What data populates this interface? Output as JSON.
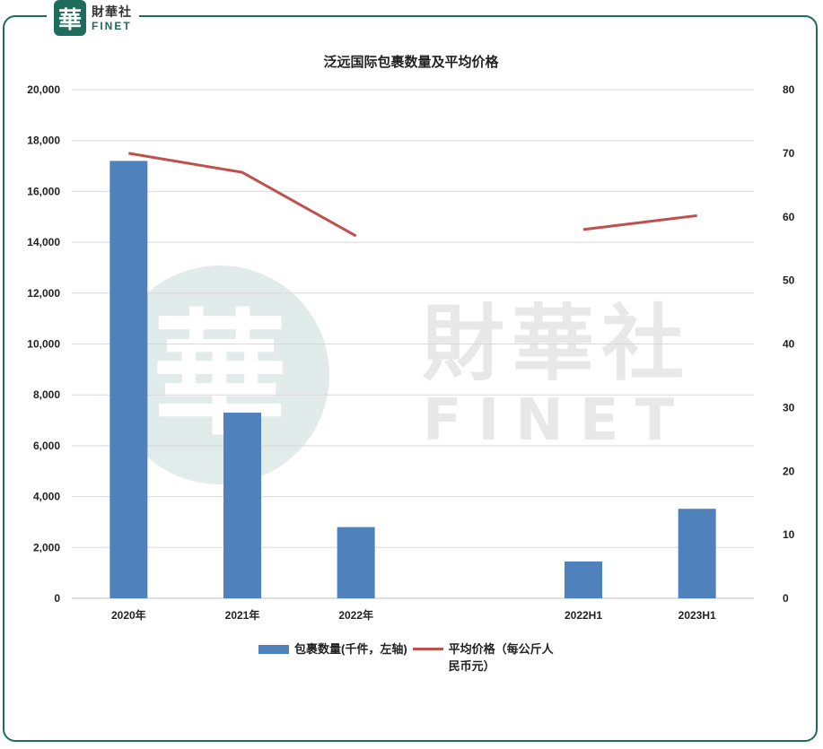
{
  "brand": {
    "logo_char": "華",
    "name_cn": "財華社",
    "name_en": "FINET",
    "watermark_cn": "財華社",
    "watermark_en": "FINET"
  },
  "colors": {
    "bar": "#4f81bd",
    "line": "#c0504d",
    "frame": "#1f6b5c"
  },
  "chart_data": {
    "type": "bar",
    "title": "泛远国际包裹数量及平均价格",
    "categories": [
      "2020年",
      "2021年",
      "2022年",
      "",
      "2022H1",
      "2023H1"
    ],
    "series": [
      {
        "name": "包裹数量(千件，左轴)",
        "type": "bar",
        "axis": "left",
        "values": [
          17200,
          7300,
          2800,
          null,
          1450,
          3520
        ]
      },
      {
        "name": "平均价格（每公斤人民币元）",
        "type": "line",
        "axis": "right",
        "segments": [
          [
            0,
            1,
            2
          ],
          [
            4,
            5
          ]
        ],
        "values": [
          70,
          67,
          57,
          null,
          58,
          60.2
        ]
      }
    ],
    "ylim": [
      0,
      20000
    ],
    "y_ticks": [
      "0",
      "2,000",
      "4,000",
      "6,000",
      "8,000",
      "10,000",
      "12,000",
      "14,000",
      "16,000",
      "18,000",
      "20,000"
    ],
    "y2lim": [
      0,
      80
    ],
    "y2_ticks": [
      "0",
      "10",
      "20",
      "30",
      "40",
      "50",
      "60",
      "70",
      "80"
    ],
    "grid": true,
    "legend_position": "bottom"
  }
}
